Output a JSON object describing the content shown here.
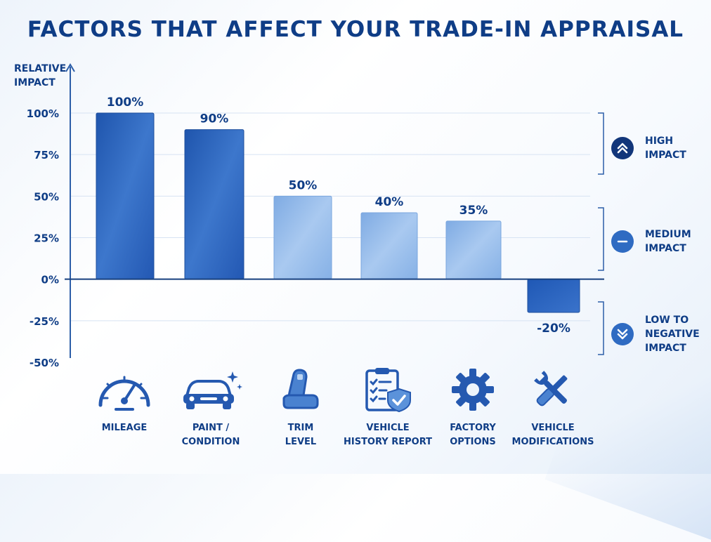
{
  "title": "FACTORS THAT AFFECT YOUR TRADE-IN APPRAISAL",
  "colors": {
    "title": "#0f3d86",
    "bar_high": "#2f66c0",
    "bar_medium": "#8fb8ea",
    "bar_negative": "#2a63bd",
    "axis": "#2c5ea8"
  },
  "chart_data": {
    "type": "bar",
    "ylabel": "RELATIVE IMPACT",
    "ylim": [
      -50,
      100
    ],
    "yticks": [
      "100%",
      "75%",
      "50%",
      "25%",
      "0%",
      "-25%",
      "-50%"
    ],
    "grid": true,
    "categories": [
      "MILEAGE",
      "PAINT / CONDITION",
      "TRIM LEVEL",
      "VEHICLE HISTORY REPORT",
      "FACTORY OPTIONS",
      "VEHICLE MODIFICATIONS"
    ],
    "values": [
      100,
      90,
      50,
      40,
      35,
      -20
    ],
    "data_labels": [
      "100%",
      "90%",
      "50%",
      "40%",
      "35%",
      "-20%"
    ],
    "legend_placement": "right"
  },
  "legend": [
    {
      "label_line1": "HIGH",
      "label_line2": "IMPACT",
      "icon": "double-chevron-up-icon"
    },
    {
      "label_line1": "MEDIUM",
      "label_line2": "IMPACT",
      "icon": "minus-icon"
    },
    {
      "label_line1": "LOW TO",
      "label_line2": "NEGATIVE",
      "label_line3": "IMPACT",
      "icon": "double-chevron-down-icon"
    }
  ],
  "factors": [
    {
      "line1": "MILEAGE",
      "line2": "",
      "icon": "speedometer-icon"
    },
    {
      "line1": "PAINT /",
      "line2": "CONDITION",
      "icon": "car-icon"
    },
    {
      "line1": "TRIM",
      "line2": "LEVEL",
      "icon": "car-seat-icon"
    },
    {
      "line1": "VEHICLE",
      "line2": "HISTORY REPORT",
      "icon": "clipboard-shield-icon"
    },
    {
      "line1": "FACTORY",
      "line2": "OPTIONS",
      "icon": "gear-icon"
    },
    {
      "line1": "VEHICLE",
      "line2": "MODIFICATIONS",
      "icon": "wrench-screwdriver-icon"
    }
  ]
}
